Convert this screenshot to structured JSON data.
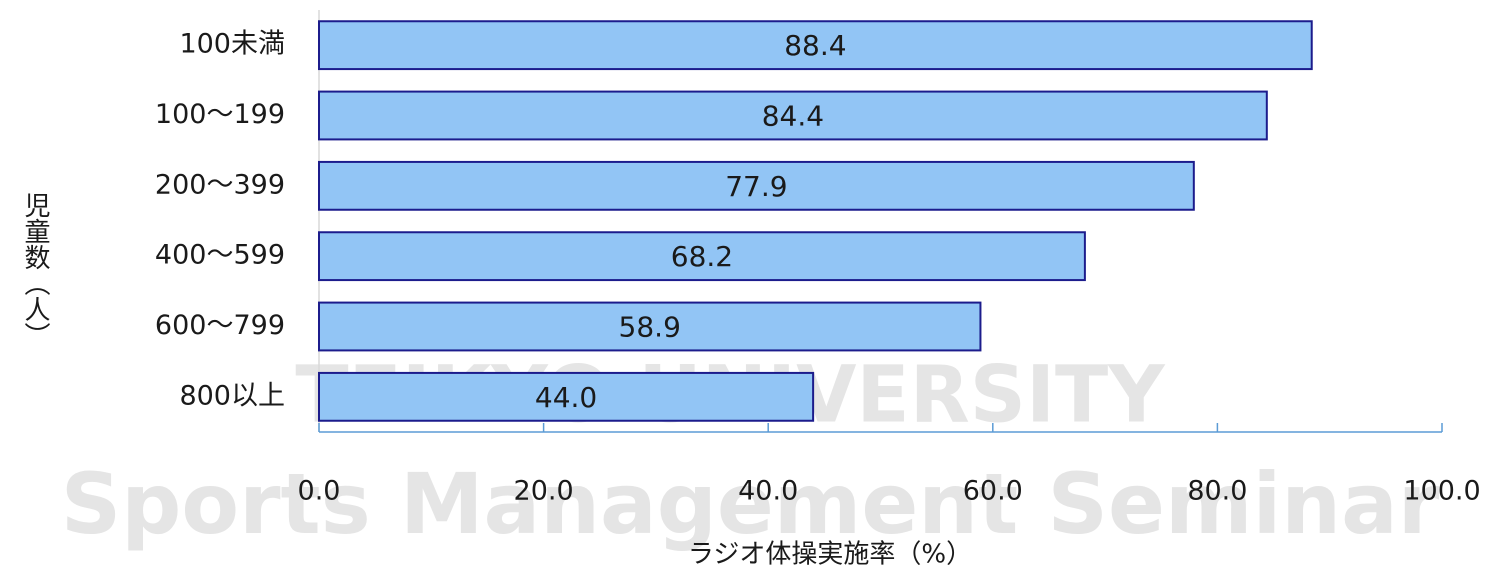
{
  "watermark": {
    "line1": "TEIKYO UNIVERSITY",
    "line2": "Sports Management Seminar"
  },
  "chart_data": {
    "type": "barh",
    "xlabel": "ラジオ体操実施率（%）",
    "ylabel": "児童数（人）",
    "categories": [
      "100未満",
      "100〜199",
      "200〜399",
      "400〜599",
      "600〜799",
      "800以上"
    ],
    "values": [
      88.4,
      84.4,
      77.9,
      68.2,
      58.9,
      44.0
    ],
    "value_labels": [
      "88.4",
      "84.4",
      "77.9",
      "68.2",
      "58.9",
      "44.0"
    ],
    "color": "#92c5f5",
    "edgecolor": "#1c1c8c",
    "xlim": [
      0,
      100
    ],
    "xticks": [
      {
        "value": 0,
        "label": "0.0"
      },
      {
        "value": 20,
        "label": "20.0"
      },
      {
        "value": 40,
        "label": "40.0"
      },
      {
        "value": 60,
        "label": "60.0"
      },
      {
        "value": 80,
        "label": "80.0"
      },
      {
        "value": 100,
        "label": "100.0"
      }
    ]
  }
}
